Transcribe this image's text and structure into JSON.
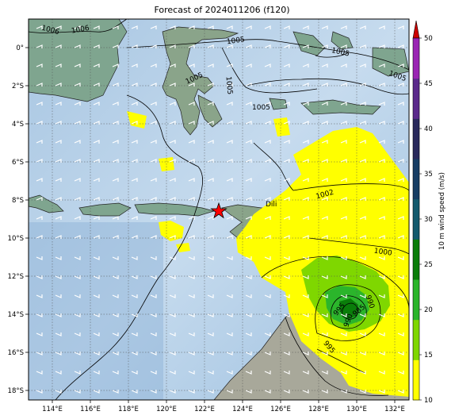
{
  "title": "Forecast of 2024011206 (f120)",
  "map": {
    "lon_ticks": [
      "114°E",
      "116°E",
      "118°E",
      "120°E",
      "122°E",
      "124°E",
      "126°E",
      "128°E",
      "130°E",
      "132°E"
    ],
    "lat_ticks": [
      "0°",
      "2°S",
      "4°S",
      "6°S",
      "8°S",
      "10°S",
      "12°S",
      "14°S",
      "16°S",
      "18°S"
    ],
    "place_label": "Dili",
    "contour_labels": [
      "1006",
      "1006",
      "1005",
      "1005",
      "1005",
      "1005",
      "1005",
      "1005",
      "1002",
      "1000",
      "995",
      "990",
      "990",
      "985",
      "995"
    ],
    "marker": "star"
  },
  "colorbar": {
    "label": "10 m wind speed (m/s)",
    "ticks": [
      "10",
      "15",
      "20",
      "25",
      "30",
      "35",
      "40",
      "45",
      "50"
    ],
    "colors": [
      "#ffff00",
      "#7fd700",
      "#2bb52b",
      "#0a7d0a",
      "#135a6e",
      "#173d64",
      "#2a2a5c",
      "#5b2a8c",
      "#9a24b4"
    ],
    "extend_color": "#cc0000"
  }
}
